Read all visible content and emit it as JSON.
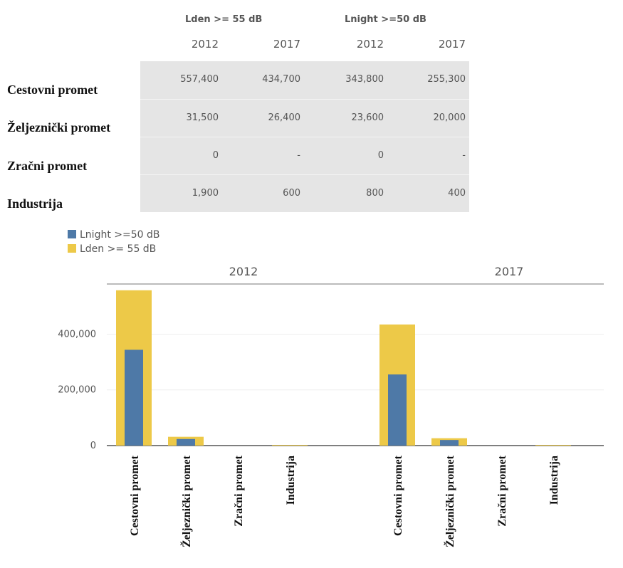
{
  "table": {
    "groups": [
      "Lden >= 55 dB",
      "Lnight >=50 dB"
    ],
    "years": [
      "2012",
      "2017",
      "2012",
      "2017"
    ],
    "rows": [
      {
        "label": "Cestovni promet",
        "values": [
          "557,400",
          "434,700",
          "343,800",
          "255,300"
        ]
      },
      {
        "label": "Željeznički promet",
        "values": [
          "31,500",
          "26,400",
          "23,600",
          "20,000"
        ]
      },
      {
        "label": "Zračni promet",
        "values": [
          "0",
          "-",
          "0",
          "-"
        ]
      },
      {
        "label": "Industrija",
        "values": [
          "1,900",
          "600",
          "800",
          "400"
        ]
      }
    ]
  },
  "legend": [
    {
      "label": "Lnight >=50 dB",
      "color": "#4e79a7"
    },
    {
      "label": "Lden >= 55 dB",
      "color": "#edc948"
    }
  ],
  "chart_data": {
    "type": "bar",
    "panels": [
      "2012",
      "2017"
    ],
    "categories": [
      "Cestovni promet",
      "Željeznički promet",
      "Zračni promet",
      "Industrija"
    ],
    "series": [
      {
        "name": "Lden >= 55 dB",
        "color": "#edc948",
        "values": {
          "2012": [
            557400,
            31500,
            0,
            1900
          ],
          "2017": [
            434700,
            26400,
            0,
            600
          ]
        }
      },
      {
        "name": "Lnight >=50 dB",
        "color": "#4e79a7",
        "values": {
          "2012": [
            343800,
            23600,
            0,
            800
          ],
          "2017": [
            255300,
            20000,
            0,
            400
          ]
        }
      }
    ],
    "y_ticks": [
      0,
      200000,
      400000
    ],
    "y_tick_labels": [
      "0",
      "200,000",
      "400,000"
    ],
    "ylim": [
      0,
      580000
    ],
    "grid": true,
    "legend_position": "top-left"
  }
}
